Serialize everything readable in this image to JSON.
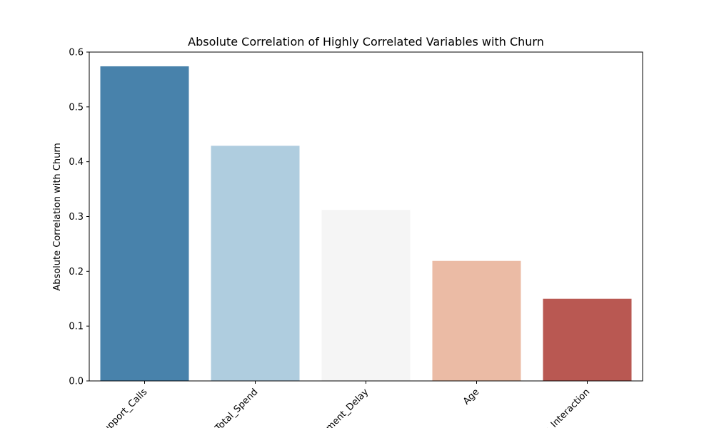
{
  "chart_data": {
    "type": "bar",
    "title": "Absolute Correlation of Highly Correlated Variables with Churn",
    "xlabel": "",
    "ylabel": "Absolute Correlation with Churn",
    "categories": [
      "Support_Calls",
      "Total_Spend",
      "Payment_Delay",
      "Age",
      "Last_Interaction"
    ],
    "values": [
      0.574,
      0.429,
      0.312,
      0.219,
      0.15
    ],
    "colors": [
      "#4882ab",
      "#afcddf",
      "#f5f5f5",
      "#ebbba5",
      "#b95852"
    ],
    "ylim": [
      0,
      0.6
    ],
    "yticks": [
      "0.0",
      "0.1",
      "0.2",
      "0.3",
      "0.4",
      "0.5",
      "0.6"
    ],
    "xtick_rotation": 45,
    "grid": false,
    "legend": "none"
  }
}
